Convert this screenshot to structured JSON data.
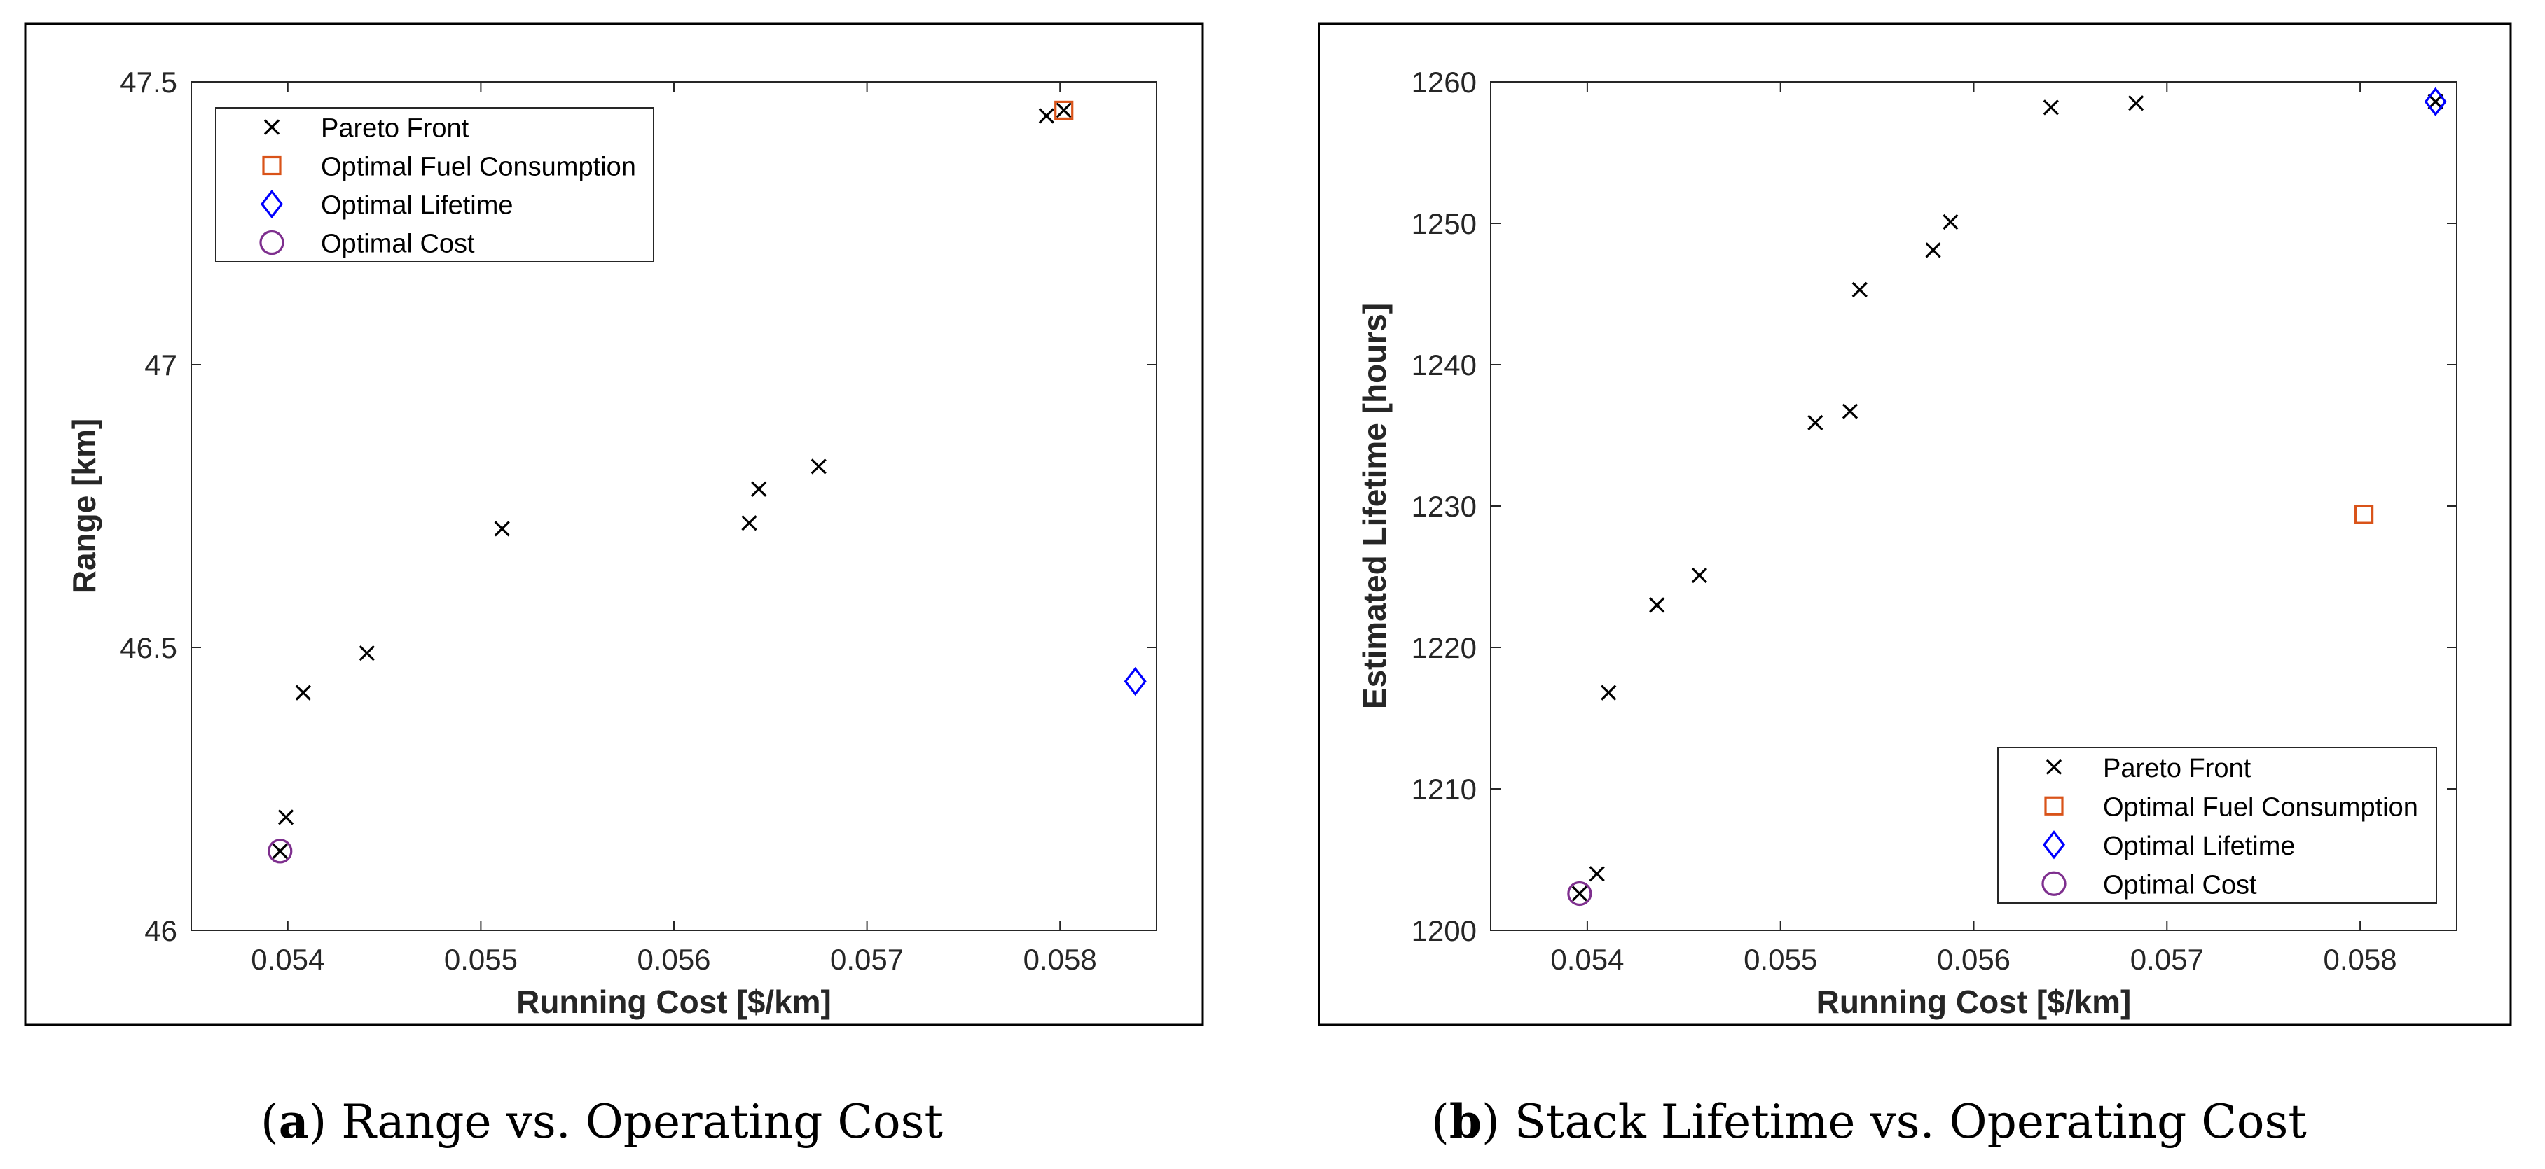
{
  "figure": {
    "captions": [
      {
        "letter": "a",
        "text": ") Range vs. Operating Cost"
      },
      {
        "letter": "b",
        "text": ") Stack Lifetime vs. Operating Cost"
      }
    ]
  },
  "colors": {
    "pareto": "#000000",
    "fuel": "#D95319",
    "lifetime": "#0000FF",
    "cost": "#7E2F8E"
  },
  "chart_data": [
    {
      "type": "scatter",
      "xlabel": "Running Cost [$/km]",
      "ylabel": "Range [km]",
      "xlim": [
        0.0535,
        0.0585
      ],
      "ylim": [
        46,
        47.5
      ],
      "xticks": [
        "0.054",
        "0.055",
        "0.056",
        "0.057",
        "0.058"
      ],
      "yticks": [
        "46",
        "46.5",
        "47",
        "47.5"
      ],
      "legend_position": "top-left",
      "legend": [
        "Pareto Front",
        "Optimal Fuel Consumption",
        "Optimal Lifetime",
        "Optimal Cost"
      ],
      "series": [
        {
          "name": "Pareto Front",
          "marker": "x",
          "x": [
            0.05396,
            0.05399,
            0.05408,
            0.05441,
            0.05511,
            0.05639,
            0.05644,
            0.05675,
            0.05793,
            0.05802
          ],
          "y": [
            46.14,
            46.2,
            46.42,
            46.49,
            46.71,
            46.72,
            46.78,
            46.82,
            47.44,
            47.45
          ]
        },
        {
          "name": "Optimal Fuel Consumption",
          "marker": "square",
          "x": [
            0.05802
          ],
          "y": [
            47.45
          ]
        },
        {
          "name": "Optimal Lifetime",
          "marker": "diamond",
          "x": [
            0.05839
          ],
          "y": [
            46.44
          ]
        },
        {
          "name": "Optimal Cost",
          "marker": "circle",
          "x": [
            0.05396
          ],
          "y": [
            46.14
          ]
        }
      ]
    },
    {
      "type": "scatter",
      "xlabel": "Running Cost [$/km]",
      "ylabel": "Estimated Lifetime [hours]",
      "xlim": [
        0.0535,
        0.0585
      ],
      "ylim": [
        1200,
        1260
      ],
      "xticks": [
        "0.054",
        "0.055",
        "0.056",
        "0.057",
        "0.058"
      ],
      "yticks": [
        "1200",
        "1210",
        "1220",
        "1230",
        "1240",
        "1250",
        "1260"
      ],
      "legend_position": "bottom-right",
      "legend": [
        "Pareto Front",
        "Optimal Fuel Consumption",
        "Optimal Lifetime",
        "Optimal Cost"
      ],
      "series": [
        {
          "name": "Pareto Front",
          "marker": "x",
          "x": [
            0.05396,
            0.05405,
            0.05411,
            0.05436,
            0.05458,
            0.05518,
            0.05536,
            0.05541,
            0.05579,
            0.05588,
            0.0564,
            0.05684,
            0.05839
          ],
          "y": [
            1202.6,
            1204.0,
            1216.8,
            1223.0,
            1225.1,
            1235.9,
            1236.7,
            1245.3,
            1248.1,
            1250.1,
            1258.2,
            1258.5,
            1258.6
          ]
        },
        {
          "name": "Optimal Fuel Consumption",
          "marker": "square",
          "x": [
            0.05802
          ],
          "y": [
            1229.4
          ]
        },
        {
          "name": "Optimal Lifetime",
          "marker": "diamond",
          "x": [
            0.05839
          ],
          "y": [
            1258.6
          ]
        },
        {
          "name": "Optimal Cost",
          "marker": "circle",
          "x": [
            0.05396
          ],
          "y": [
            1202.6
          ]
        }
      ]
    }
  ]
}
